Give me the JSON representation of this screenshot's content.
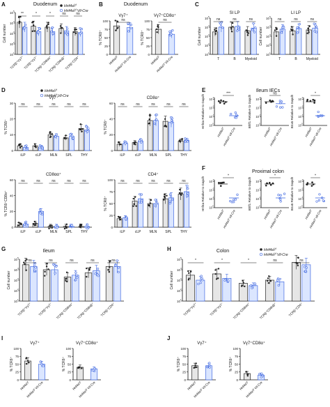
{
  "legend": {
    "flox": "Hnf4aᶠ/ᶠ",
    "cre": "Hnf4aᶠ/ᶠ Vil-Cre"
  },
  "colors": {
    "flox": "#222222",
    "cre": "#4169e1",
    "cre_bar": "#dbe6ff",
    "flox_bar": "#e6e6e6"
  },
  "panel_letters": [
    "A",
    "B",
    "C",
    "D",
    "E",
    "F",
    "G",
    "H",
    "I",
    "J"
  ],
  "chart_data": [
    {
      "panel": "A",
      "type": "bar",
      "title": "Duodenum",
      "ylabel": "Cell number",
      "ylog": true,
      "ylim": [
        10,
        100000
      ],
      "categories": [
        "TCRβ⁺Vγ7⁺",
        "TCRβ⁺Vγ7⁻",
        "TCRβ⁺CD8αα⁺",
        "TCRβ⁺CD8αβ⁺",
        "TCRβ⁺CD4⁺"
      ],
      "series": [
        {
          "name": "Hnf4aᶠ/ᶠ",
          "values": [
            12000,
            5000,
            4000,
            3000,
            1500
          ]
        },
        {
          "name": "Hnf4aᶠ/ᶠ Vil-Cre",
          "values": [
            4000,
            1500,
            1500,
            1800,
            1200
          ]
        }
      ],
      "significance": [
        "**",
        "*",
        "*",
        "ns",
        "ns"
      ]
    },
    {
      "panel": "B",
      "type": "bar",
      "title": "Duodenum",
      "subtitle": "Vγ7⁺",
      "ylabel": "% TCRδ⁺",
      "ylim": [
        0,
        100
      ],
      "categories": [
        "Hnf4aᶠ/ᶠ",
        "Hnf4aᶠ/ᶠ Vil-Cre"
      ],
      "values": [
        85,
        80
      ],
      "significance": [
        "ns"
      ]
    },
    {
      "panel": "B2",
      "type": "bar",
      "subtitle": "Vγ7⁺CD8α⁺",
      "ylabel": "% TCRδ⁺",
      "ylim": [
        0,
        100
      ],
      "categories": [
        "Hnf4aᶠ/ᶠ",
        "Hnf4aᶠ/ᶠ Vil-Cre"
      ],
      "values": [
        75,
        60
      ],
      "significance": [
        "ns"
      ]
    },
    {
      "panel": "C",
      "type": "bar",
      "subtitle": "SI LP",
      "ylabel": "Cell number",
      "ylog": true,
      "categories": [
        "T",
        "B",
        "Myeloid"
      ],
      "series": [
        {
          "name": "Hnf4aᶠ/ᶠ",
          "values": [
            3000,
            10000,
            4000
          ]
        },
        {
          "name": "Hnf4aᶠ/ᶠ Vil-Cre",
          "values": [
            10000,
            12000,
            8000
          ]
        }
      ],
      "significance": [
        "ns",
        "ns",
        "ns"
      ]
    },
    {
      "panel": "C2",
      "type": "bar",
      "subtitle": "LI LP",
      "ylabel": "Cell number",
      "ylog": true,
      "categories": [
        "T",
        "B",
        "Myeloid"
      ],
      "series": [
        {
          "name": "Hnf4aᶠ/ᶠ",
          "values": [
            3000,
            4000,
            5000
          ]
        },
        {
          "name": "Hnf4aᶠ/ᶠ Vil-Cre",
          "values": [
            6000,
            7000,
            8000
          ]
        }
      ],
      "significance": [
        "ns",
        "ns",
        "ns"
      ]
    },
    {
      "panel": "D",
      "type": "bar",
      "subtitle": "Vγ7⁺",
      "ylabel": "% TCRδ⁺",
      "ylim": [
        0,
        30
      ],
      "categories": [
        "iLP",
        "cLP",
        "MLN",
        "SPL",
        "THY"
      ],
      "series": [
        {
          "name": "Hnf4aᶠ/ᶠ",
          "values": [
            3,
            3,
            10,
            8,
            14
          ]
        },
        {
          "name": "Hnf4aᶠ/ᶠ Vil-Cre",
          "values": [
            2,
            2,
            9,
            9,
            13
          ]
        }
      ],
      "significance": [
        "ns",
        "ns",
        "ns",
        "ns",
        "ns"
      ]
    },
    {
      "panel": "D2",
      "type": "bar",
      "subtitle": "CD8α⁺",
      "ylabel": "% TCRδ⁺",
      "ylim": [
        0,
        60
      ],
      "categories": [
        "iLP",
        "cLP",
        "MLN",
        "SPL",
        "THY"
      ],
      "series": [
        {
          "name": "Hnf4aᶠ/ᶠ",
          "values": [
            8,
            10,
            38,
            37,
            12
          ]
        },
        {
          "name": "Hnf4aᶠ/ᶠ Vil-Cre",
          "values": [
            9,
            12,
            38,
            36,
            13
          ]
        }
      ],
      "significance": [
        "ns",
        "ns",
        "ns",
        "ns",
        "ns"
      ]
    },
    {
      "panel": "D3",
      "type": "bar",
      "subtitle": "CD8αα⁺",
      "ylabel": "% TCRδ⁺CD8α⁺",
      "ylim": [
        0,
        60
      ],
      "categories": [
        "iLP",
        "cLP",
        "MLN",
        "SPL",
        "THY"
      ],
      "series": [
        {
          "name": "Hnf4aᶠ/ᶠ",
          "values": [
            3,
            5,
            1,
            1,
            1
          ]
        },
        {
          "name": "Hnf4aᶠ/ᶠ Vil-Cre",
          "values": [
            4,
            20,
            1,
            1,
            1
          ]
        }
      ],
      "significance": [
        "ns",
        "ns",
        "ns",
        "ns",
        "ns"
      ]
    },
    {
      "panel": "D4",
      "type": "bar",
      "subtitle": "CD4⁺",
      "ylabel": "% TCRδ⁺",
      "ylim": [
        0,
        100
      ],
      "categories": [
        "iLP",
        "cLP",
        "MLN",
        "SPL",
        "THY"
      ],
      "series": [
        {
          "name": "Hnf4aᶠ/ᶠ",
          "values": [
            18,
            55,
            50,
            60,
            70
          ]
        },
        {
          "name": "Hnf4aᶠ/ᶠ Vil-Cre",
          "values": [
            20,
            60,
            50,
            62,
            75
          ]
        }
      ],
      "significance": [
        "ns",
        "ns",
        "ns",
        "ns",
        "ns"
      ]
    },
    {
      "panel": "E",
      "type": "scatter",
      "title": "Ileum IECs",
      "ylog": true,
      "subplots": [
        {
          "ylabel": "Hnf4a Relative to Gapdh",
          "sig": "***"
        },
        {
          "ylabel": "Bhlf1 Relative to Gapdh",
          "sig": "ns"
        },
        {
          "ylabel": "Bnx6 Relative to Gapdh",
          "sig": "*"
        }
      ],
      "categories": [
        "Hnf4aᶠ/ᶠ",
        "Hnf4aᶠ/ᶠ Vil-Cre"
      ]
    },
    {
      "panel": "F",
      "type": "scatter",
      "title": "Proximal colon",
      "ylog": true,
      "subplots": [
        {
          "ylabel": "Hnf4a Relative to Gapdh",
          "sig": "*"
        },
        {
          "ylabel": "Bhlf1 Relative to Gapdh",
          "sig": "*"
        },
        {
          "ylabel": "Bnx6 Relative to Gapdh",
          "sig": "*"
        }
      ],
      "categories": [
        "Hnf4aᶠ/ᶠ",
        "Hnf4aᶠ/ᶠ Vil-Cre"
      ]
    },
    {
      "panel": "G",
      "type": "bar",
      "title": "Ileum",
      "ylabel": "Cell number",
      "ylog": true,
      "categories": [
        "TCRβ⁺Vγ7⁺",
        "TCRβ⁺Vγ7⁻",
        "TCRβ⁺CD8αα⁺",
        "TCRβ⁺CD8αβ⁺",
        "TCRβ⁺CD4⁺"
      ],
      "series": [
        {
          "name": "Hnf4aᶠ/ᶠ",
          "values": [
            30000,
            10000,
            2000,
            5000,
            20000
          ]
        },
        {
          "name": "Hnf4aᶠ/ᶠ Vil-Cre",
          "values": [
            20000,
            10000,
            3000,
            8000,
            20000
          ]
        }
      ],
      "significance": [
        "ns",
        "ns",
        "ns",
        "ns",
        "ns"
      ]
    },
    {
      "panel": "H",
      "type": "bar",
      "title": "Colon",
      "ylabel": "Cell number",
      "ylog": true,
      "categories": [
        "TCRβ⁺Vγ7⁺",
        "TCRβ⁺Vγ7⁻",
        "TCRβ⁺CD8αα⁺",
        "TCRβ⁺CD8αβ⁺",
        "TCRβ⁺CD4⁺"
      ],
      "series": [
        {
          "name": "Hnf4aᶠ/ᶠ",
          "values": [
            3000,
            4000,
            500,
            1000,
            50000
          ]
        },
        {
          "name": "Hnf4aᶠ/ᶠ Vil-Cre",
          "values": [
            1000,
            1500,
            300,
            700,
            30000
          ]
        }
      ],
      "significance": [
        "*",
        "*",
        "*",
        "ns",
        "ns"
      ]
    },
    {
      "panel": "I",
      "type": "bar",
      "subtitle": "Vγ7⁺",
      "ylabel": "% TCRδ⁺",
      "ylim": [
        0,
        100
      ],
      "categories": [
        "Hnf4aᶠ/ᶠ",
        "Hnf4aᶠ/ᶠ Vil-Cre"
      ],
      "values": [
        60,
        50
      ]
    },
    {
      "panel": "I2",
      "type": "bar",
      "subtitle": "Vγ7⁺CD8α⁺",
      "ylabel": "% TCRδ⁺",
      "ylim": [
        0,
        100
      ],
      "categories": [
        "Hnf4aᶠ/ᶠ",
        "Hnf4aᶠ/ᶠ Vil-Cre"
      ],
      "values": [
        40,
        35
      ]
    },
    {
      "panel": "J",
      "type": "bar",
      "subtitle": "Vγ7⁺",
      "ylabel": "% TCRδ⁺",
      "ylim": [
        0,
        100
      ],
      "categories": [
        "Hnf4aᶠ/ᶠ",
        "Hnf4aᶠ/ᶠ Vil-Cre"
      ],
      "values": [
        45,
        45
      ]
    },
    {
      "panel": "J2",
      "type": "bar",
      "subtitle": "Vγ7⁺CD8α⁺",
      "ylabel": "% TCRδ⁺",
      "ylim": [
        0,
        100
      ],
      "categories": [
        "Hnf4aᶠ/ᶠ",
        "Hnf4aᶠ/ᶠ Vil-Cre"
      ],
      "values": [
        20,
        15
      ]
    }
  ]
}
